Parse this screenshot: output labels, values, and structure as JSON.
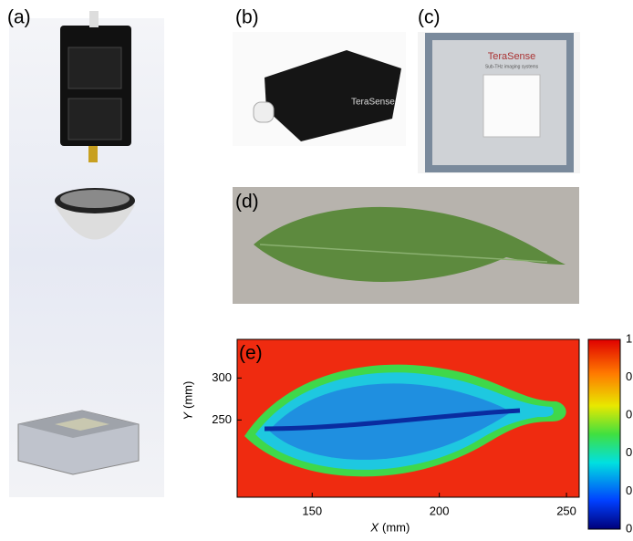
{
  "panel_labels": [
    "(a)",
    "(b)",
    "(c)",
    "(d)",
    "(e)"
  ],
  "photo_texts": {
    "b_brand": "TeraSense",
    "c_brand": "TeraSense",
    "c_tagline": "Sub-THz imaging systems"
  },
  "chart_data": {
    "type": "heatmap",
    "x_label_var": "X",
    "x_label_unit": "(mm)",
    "y_label_var": "Y",
    "y_label_unit": "(mm)",
    "xlim": [
      120.5,
      255
    ],
    "ylim": [
      158,
      346
    ],
    "xticks": [
      150,
      200,
      250
    ],
    "yticks": [
      250,
      300
    ],
    "colorbar_labels": [
      "1",
      "0",
      "0",
      "0",
      "0",
      "0"
    ]
  }
}
